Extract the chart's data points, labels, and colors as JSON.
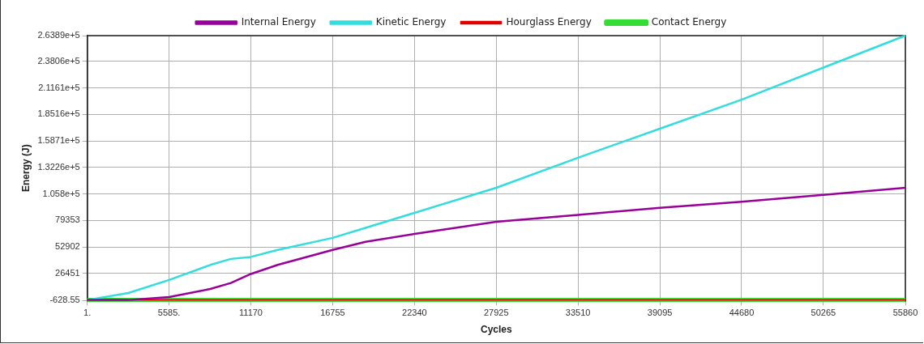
{
  "chart_data": {
    "type": "line",
    "xlabel": "Cycles",
    "ylabel": "Energy (J)",
    "x": [
      1,
      2800,
      5585,
      8400,
      9800,
      11170,
      13000,
      16755,
      19000,
      22340,
      27925,
      33510,
      39095,
      44680,
      50265,
      55860
    ],
    "series": [
      {
        "name": "Internal Energy",
        "color": "#990099",
        "values": [
          0,
          0,
          3000,
          11000,
          17000,
          26000,
          35000,
          50000,
          58000,
          66000,
          78000,
          85000,
          92000,
          98000,
          105000,
          112000
        ]
      },
      {
        "name": "Kinetic Energy",
        "color": "#33dddd",
        "values": [
          0,
          7000,
          20000,
          35000,
          41000,
          43000,
          50000,
          62000,
          72000,
          87000,
          112000,
          142000,
          171000,
          200000,
          232000,
          263890
        ]
      },
      {
        "name": "Hourglass Energy",
        "color": "#e00000",
        "values": [
          0,
          0,
          0,
          0,
          0,
          0,
          0,
          0,
          0,
          0,
          0,
          0,
          0,
          0,
          0,
          0
        ]
      },
      {
        "name": "Contact Energy",
        "color": "#33dd33",
        "values": [
          0,
          0,
          0,
          0,
          0,
          0,
          0,
          0,
          0,
          0,
          0,
          0,
          0,
          0,
          0,
          0
        ]
      }
    ],
    "xlim": [
      1,
      55860
    ],
    "xticks": [
      {
        "value": 1,
        "label": "1."
      },
      {
        "value": 5585,
        "label": "5585."
      },
      11170,
      16755,
      22340,
      27925,
      33510,
      39095,
      44680,
      50265,
      55860
    ],
    "ylim": [
      -628.55,
      263890
    ],
    "yticks": [
      -628.55,
      26451,
      52902,
      79353,
      {
        "value": 105800,
        "label": "1.058e+5"
      },
      {
        "value": 132260,
        "label": "1.3226e+5"
      },
      {
        "value": 158710,
        "label": "1.5871e+5"
      },
      {
        "value": 185160,
        "label": "1.8516e+5"
      },
      {
        "value": 211610,
        "label": "2.1161e+5"
      },
      {
        "value": 238060,
        "label": "2.3806e+5"
      },
      {
        "value": 263890,
        "label": "2.6389e+5"
      }
    ],
    "grid": true,
    "legend": "top",
    "marker": "none",
    "line_style": "solid"
  }
}
